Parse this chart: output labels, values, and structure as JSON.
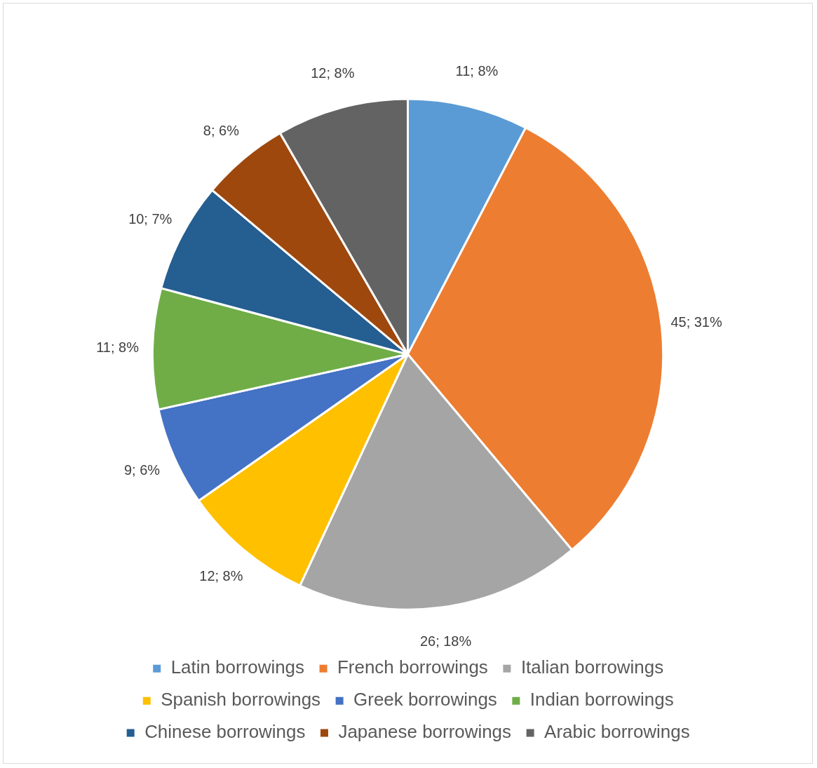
{
  "chart_data": {
    "type": "pie",
    "categories": [
      "Latin borrowings",
      "French borrowings",
      "Italian borrowings",
      "Spanish borrowings",
      "Greek borrowings",
      "Indian borrowings",
      "Chinese borrowings",
      "Japanese borrowings",
      "Arabic borrowings"
    ],
    "values": [
      11,
      45,
      26,
      12,
      9,
      11,
      10,
      8,
      12
    ],
    "colors": [
      "#5b9bd5",
      "#ed7d31",
      "#a5a5a5",
      "#ffc000",
      "#4472c4",
      "#70ad47",
      "#255e91",
      "#9e480e",
      "#636363"
    ],
    "value_labels": [
      "11; 8%",
      "45; 31%",
      "26; 18%",
      "12; 8%",
      "9; 6%",
      "11; 8%",
      "10; 7%",
      "8; 6%",
      "12; 8%"
    ],
    "legend": "bottom"
  }
}
